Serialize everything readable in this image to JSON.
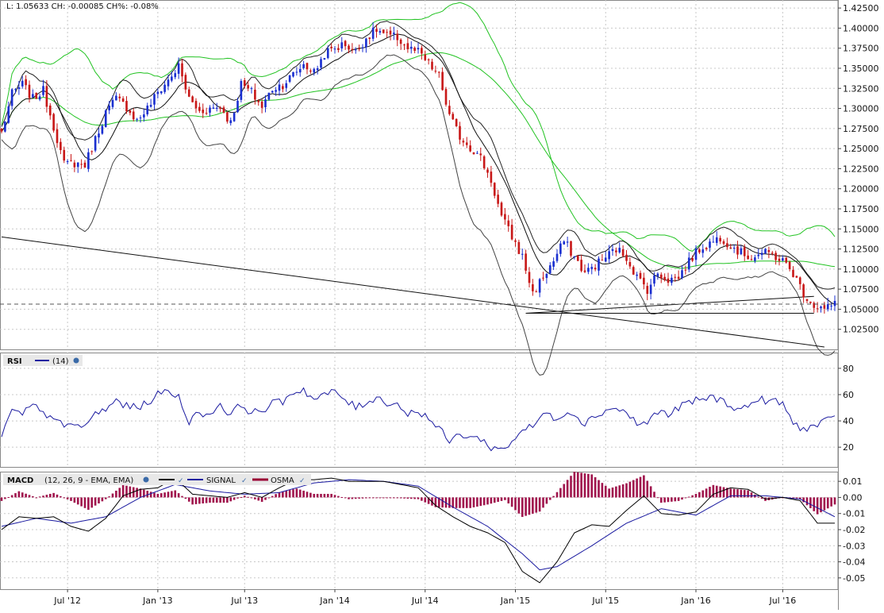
{
  "header": {
    "last": "L: 1.05633",
    "change": "CH: -0.00085",
    "change_pct": "CH%: -0.08%"
  },
  "chart_data": [
    {
      "type": "candlestick",
      "title": "",
      "price_axis": {
        "ticks": [
          "1.42500",
          "1.40000",
          "1.37500",
          "1.35000",
          "1.32500",
          "1.30000",
          "1.27500",
          "1.25000",
          "1.22500",
          "1.20000",
          "1.17500",
          "1.15000",
          "1.12500",
          "1.10000",
          "1.07500",
          "1.05000",
          "1.02500"
        ],
        "range": [
          1.0,
          1.435
        ]
      },
      "last_value": 1.05633,
      "x_axis": {
        "ticks": [
          "Jul '12",
          "Jan '13",
          "Jul '13",
          "Jan '14",
          "Jul '14",
          "Jan '15",
          "Jul '15",
          "Jan '16",
          "Jul '16"
        ],
        "tick_index": [
          19,
          45,
          70,
          96,
          122,
          148,
          174,
          200,
          225
        ]
      },
      "close_anchors": [
        [
          0,
          1.27
        ],
        [
          3,
          1.318
        ],
        [
          6,
          1.33
        ],
        [
          9,
          1.312
        ],
        [
          12,
          1.322
        ],
        [
          15,
          1.278
        ],
        [
          18,
          1.23
        ],
        [
          21,
          1.232
        ],
        [
          24,
          1.23
        ],
        [
          27,
          1.262
        ],
        [
          30,
          1.295
        ],
        [
          33,
          1.312
        ],
        [
          36,
          1.302
        ],
        [
          39,
          1.285
        ],
        [
          42,
          1.3
        ],
        [
          45,
          1.32
        ],
        [
          48,
          1.335
        ],
        [
          51,
          1.352
        ],
        [
          54,
          1.312
        ],
        [
          57,
          1.296
        ],
        [
          60,
          1.3
        ],
        [
          63,
          1.302
        ],
        [
          66,
          1.282
        ],
        [
          69,
          1.33
        ],
        [
          72,
          1.32
        ],
        [
          75,
          1.302
        ],
        [
          78,
          1.325
        ],
        [
          81,
          1.33
        ],
        [
          84,
          1.342
        ],
        [
          87,
          1.355
        ],
        [
          90,
          1.345
        ],
        [
          93,
          1.368
        ],
        [
          96,
          1.375
        ],
        [
          99,
          1.38
        ],
        [
          102,
          1.37
        ],
        [
          105,
          1.388
        ],
        [
          108,
          1.398
        ],
        [
          111,
          1.39
        ],
        [
          114,
          1.388
        ],
        [
          117,
          1.375
        ],
        [
          120,
          1.37
        ],
        [
          123,
          1.355
        ],
        [
          126,
          1.34
        ],
        [
          129,
          1.29
        ],
        [
          132,
          1.265
        ],
        [
          135,
          1.252
        ],
        [
          138,
          1.238
        ],
        [
          141,
          1.21
        ],
        [
          144,
          1.165
        ],
        [
          147,
          1.14
        ],
        [
          150,
          1.115
        ],
        [
          153,
          1.07
        ],
        [
          156,
          1.09
        ],
        [
          159,
          1.11
        ],
        [
          162,
          1.135
        ],
        [
          165,
          1.115
        ],
        [
          168,
          1.095
        ],
        [
          171,
          1.105
        ],
        [
          174,
          1.115
        ],
        [
          177,
          1.125
        ],
        [
          180,
          1.115
        ],
        [
          183,
          1.09
        ],
        [
          186,
          1.075
        ],
        [
          189,
          1.095
        ],
        [
          192,
          1.087
        ],
        [
          195,
          1.09
        ],
        [
          198,
          1.11
        ],
        [
          201,
          1.125
        ],
        [
          204,
          1.132
        ],
        [
          207,
          1.14
        ],
        [
          210,
          1.13
        ],
        [
          213,
          1.12
        ],
        [
          216,
          1.115
        ],
        [
          219,
          1.12
        ],
        [
          222,
          1.118
        ],
        [
          225,
          1.11
        ],
        [
          228,
          1.095
        ],
        [
          231,
          1.07
        ],
        [
          234,
          1.055
        ],
        [
          237,
          1.05
        ],
        [
          240,
          1.056
        ]
      ],
      "overlays": [
        {
          "name": "Bollinger Bands (20, 2)",
          "color": "#00c000"
        },
        {
          "name": "Moving Average",
          "color": "#000000"
        }
      ],
      "trend_lines": [
        {
          "from": [
            0,
            1.14
          ],
          "to": [
            237,
            1.003
          ]
        },
        {
          "from": [
            151,
            1.045
          ],
          "to": [
            234,
            1.066
          ]
        },
        {
          "from": [
            151,
            1.045
          ],
          "to": [
            234,
            1.045
          ]
        }
      ]
    },
    {
      "type": "line",
      "title": "RSI",
      "series": [
        {
          "name": "(14)",
          "color": "#1a1aa0"
        }
      ],
      "ylim": [
        5,
        92
      ],
      "y_ticks": [
        "80",
        "60",
        "40",
        "20"
      ],
      "rsi_anchors": [
        [
          0,
          30
        ],
        [
          3,
          47
        ],
        [
          6,
          45
        ],
        [
          9,
          52
        ],
        [
          12,
          45
        ],
        [
          15,
          44
        ],
        [
          18,
          34
        ],
        [
          21,
          38
        ],
        [
          24,
          35
        ],
        [
          27,
          46
        ],
        [
          30,
          48
        ],
        [
          33,
          56
        ],
        [
          36,
          51
        ],
        [
          39,
          50
        ],
        [
          42,
          54
        ],
        [
          45,
          60
        ],
        [
          48,
          63
        ],
        [
          51,
          58
        ],
        [
          54,
          40
        ],
        [
          57,
          46
        ],
        [
          60,
          45
        ],
        [
          63,
          53
        ],
        [
          66,
          44
        ],
        [
          69,
          53
        ],
        [
          72,
          46
        ],
        [
          75,
          48
        ],
        [
          78,
          53
        ],
        [
          81,
          55
        ],
        [
          84,
          62
        ],
        [
          87,
          64
        ],
        [
          90,
          56
        ],
        [
          93,
          60
        ],
        [
          96,
          62
        ],
        [
          99,
          56
        ],
        [
          102,
          50
        ],
        [
          105,
          54
        ],
        [
          108,
          58
        ],
        [
          111,
          54
        ],
        [
          114,
          53
        ],
        [
          117,
          45
        ],
        [
          120,
          48
        ],
        [
          123,
          42
        ],
        [
          126,
          34
        ],
        [
          129,
          24
        ],
        [
          132,
          30
        ],
        [
          135,
          28
        ],
        [
          138,
          26
        ],
        [
          141,
          20
        ],
        [
          144,
          18
        ],
        [
          147,
          24
        ],
        [
          150,
          34
        ],
        [
          153,
          35
        ],
        [
          156,
          46
        ],
        [
          159,
          42
        ],
        [
          162,
          46
        ],
        [
          165,
          46
        ],
        [
          168,
          38
        ],
        [
          171,
          44
        ],
        [
          174,
          48
        ],
        [
          177,
          50
        ],
        [
          180,
          46
        ],
        [
          183,
          38
        ],
        [
          186,
          38
        ],
        [
          189,
          48
        ],
        [
          192,
          44
        ],
        [
          195,
          50
        ],
        [
          198,
          54
        ],
        [
          201,
          56
        ],
        [
          204,
          58
        ],
        [
          207,
          56
        ],
        [
          210,
          52
        ],
        [
          213,
          48
        ],
        [
          216,
          54
        ],
        [
          219,
          56
        ],
        [
          222,
          55
        ],
        [
          225,
          53
        ],
        [
          228,
          38
        ],
        [
          231,
          34
        ],
        [
          234,
          36
        ],
        [
          237,
          39
        ],
        [
          240,
          42
        ]
      ]
    },
    {
      "type": "line",
      "title": "MACD",
      "params": "(12, 26, 9 - EMA, EMA)",
      "legend": [
        {
          "label": "",
          "color": "#000000"
        },
        {
          "label": "SIGNAL",
          "color": "#1a1aa0"
        },
        {
          "label": "OSMA",
          "color": "#990033"
        }
      ],
      "ylim": [
        -0.057,
        0.016
      ],
      "y_ticks": [
        0.01,
        0.0,
        -0.01,
        -0.02,
        -0.03,
        -0.04,
        -0.05
      ],
      "y_tick_labels": [
        "0.01",
        "0.00",
        "-0.01",
        "-0.02",
        "-0.03",
        "-0.04",
        "-0.05"
      ],
      "macd_anchors": [
        [
          0,
          -0.02
        ],
        [
          5,
          -0.012
        ],
        [
          10,
          -0.013
        ],
        [
          15,
          -0.012
        ],
        [
          20,
          -0.018
        ],
        [
          25,
          -0.021
        ],
        [
          30,
          -0.013
        ],
        [
          35,
          0.001
        ],
        [
          40,
          0.005
        ],
        [
          45,
          0.006
        ],
        [
          50,
          0.012
        ],
        [
          55,
          0.002
        ],
        [
          60,
          0.001
        ],
        [
          65,
          0.0
        ],
        [
          70,
          0.003
        ],
        [
          75,
          0.0
        ],
        [
          80,
          0.006
        ],
        [
          85,
          0.011
        ],
        [
          90,
          0.011
        ],
        [
          95,
          0.012
        ],
        [
          100,
          0.01
        ],
        [
          105,
          0.01
        ],
        [
          110,
          0.01
        ],
        [
          115,
          0.008
        ],
        [
          120,
          0.006
        ],
        [
          125,
          -0.005
        ],
        [
          130,
          -0.012
        ],
        [
          135,
          -0.018
        ],
        [
          140,
          -0.022
        ],
        [
          145,
          -0.028
        ],
        [
          150,
          -0.046
        ],
        [
          155,
          -0.053
        ],
        [
          160,
          -0.04
        ],
        [
          165,
          -0.022
        ],
        [
          170,
          -0.017
        ],
        [
          175,
          -0.018
        ],
        [
          180,
          -0.008
        ],
        [
          185,
          0.001
        ],
        [
          190,
          -0.01
        ],
        [
          195,
          -0.011
        ],
        [
          200,
          -0.009
        ],
        [
          205,
          0.002
        ],
        [
          210,
          0.006
        ],
        [
          215,
          0.005
        ],
        [
          220,
          -0.001
        ],
        [
          225,
          0.0
        ],
        [
          230,
          -0.002
        ],
        [
          235,
          -0.016
        ],
        [
          240,
          -0.016
        ]
      ],
      "signal_anchors": [
        [
          0,
          -0.018
        ],
        [
          10,
          -0.013
        ],
        [
          20,
          -0.016
        ],
        [
          30,
          -0.012
        ],
        [
          40,
          0.0
        ],
        [
          50,
          0.008
        ],
        [
          60,
          0.004
        ],
        [
          70,
          0.002
        ],
        [
          80,
          0.003
        ],
        [
          90,
          0.009
        ],
        [
          100,
          0.011
        ],
        [
          110,
          0.01
        ],
        [
          120,
          0.007
        ],
        [
          130,
          -0.006
        ],
        [
          140,
          -0.018
        ],
        [
          150,
          -0.035
        ],
        [
          155,
          -0.045
        ],
        [
          160,
          -0.043
        ],
        [
          170,
          -0.03
        ],
        [
          180,
          -0.016
        ],
        [
          190,
          -0.007
        ],
        [
          200,
          -0.011
        ],
        [
          210,
          0.001
        ],
        [
          220,
          0.001
        ],
        [
          230,
          -0.001
        ],
        [
          240,
          -0.012
        ]
      ]
    }
  ]
}
